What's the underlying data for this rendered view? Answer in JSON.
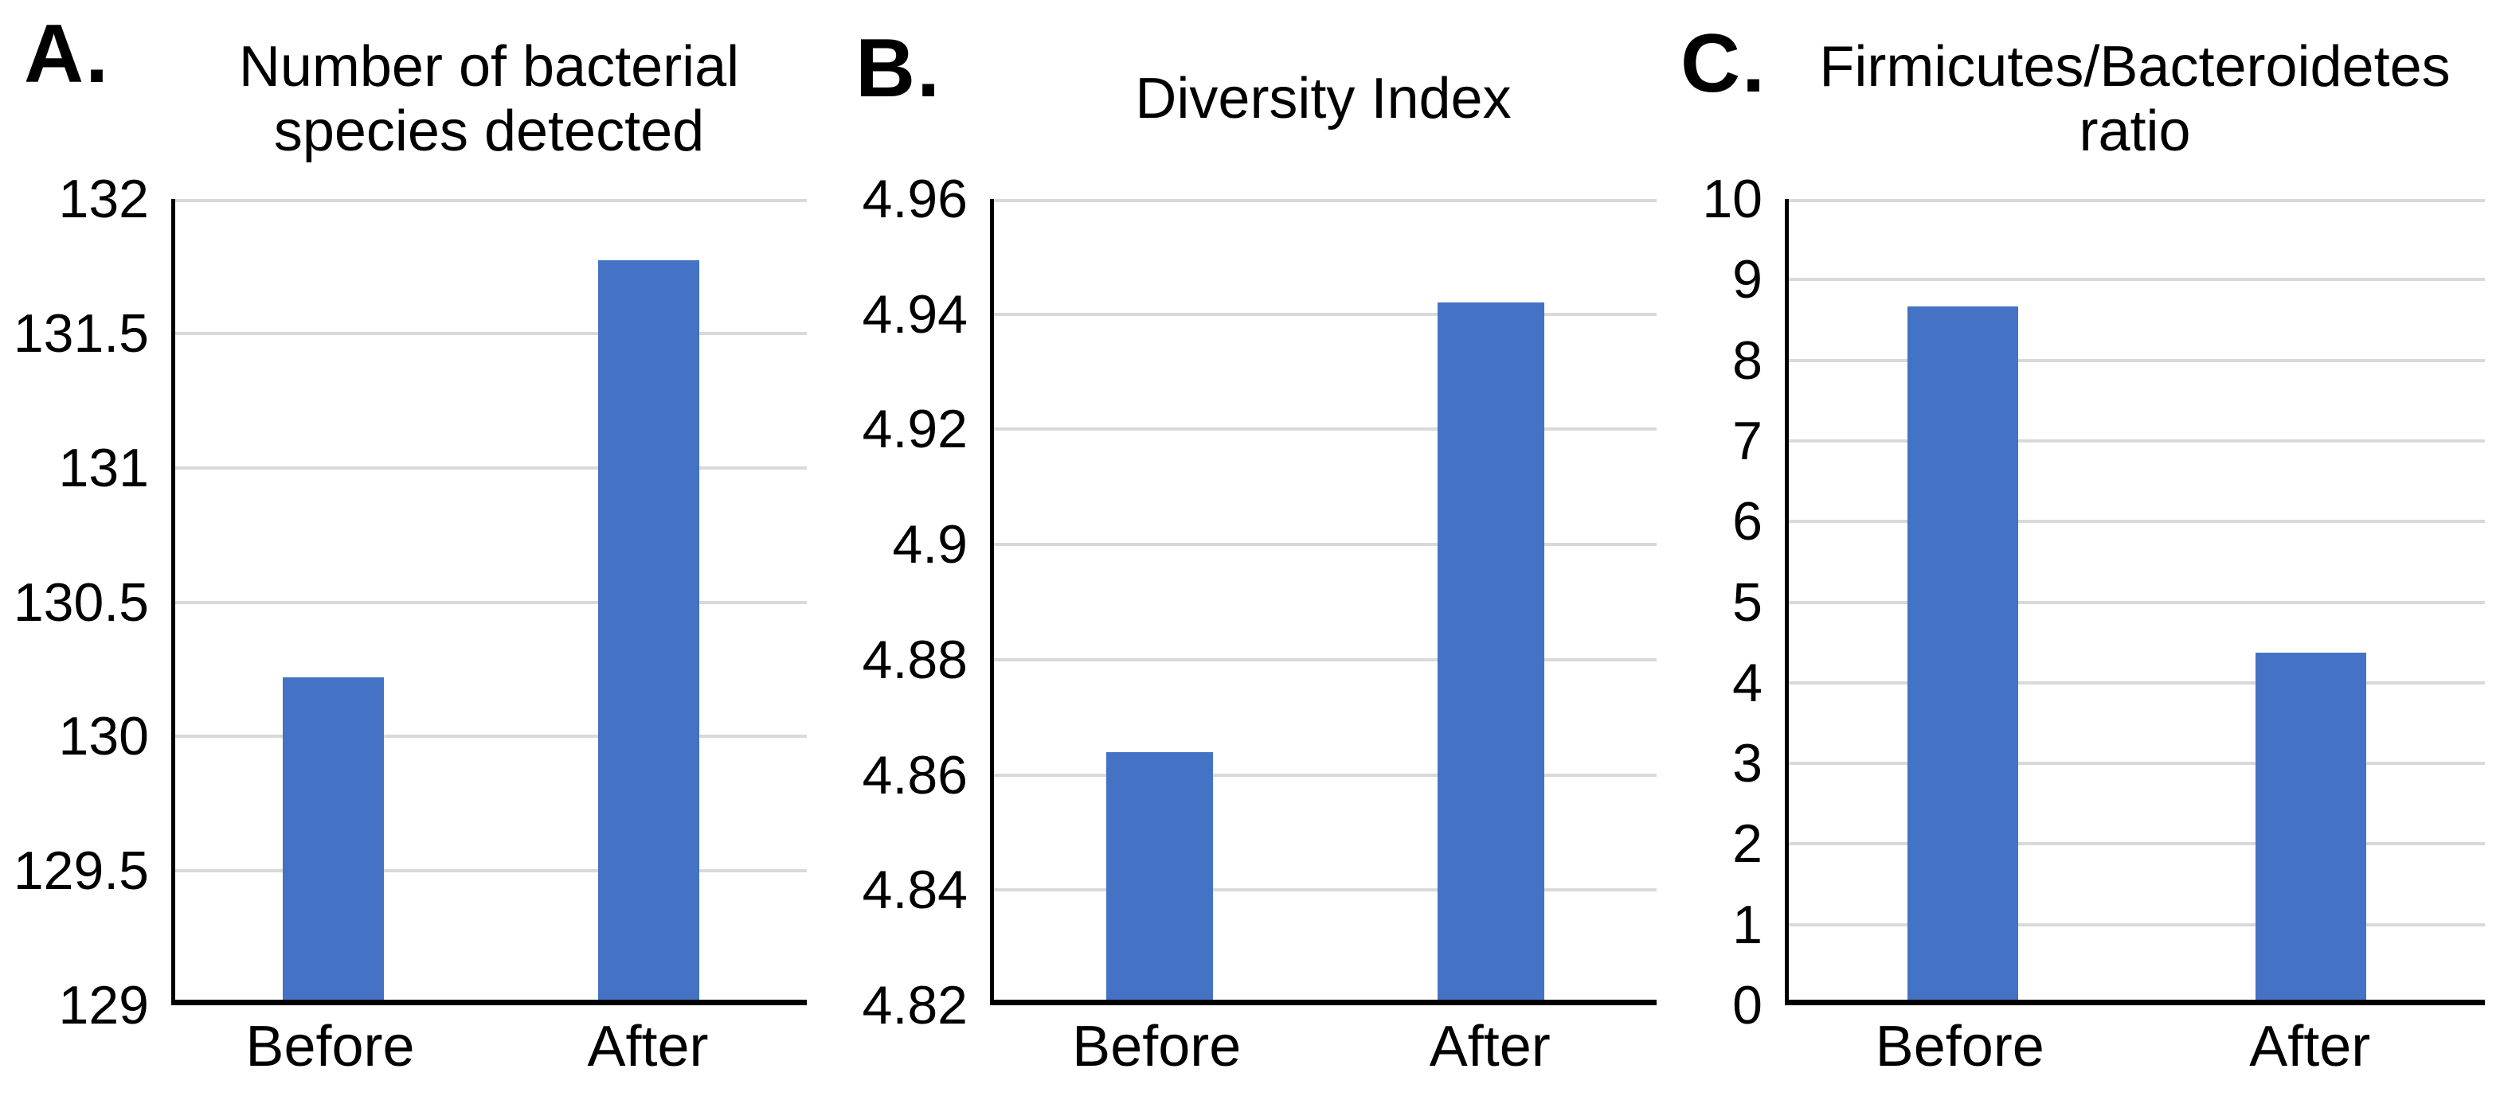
{
  "figure": {
    "background": "#ffffff",
    "bar_color": "#4472C4",
    "gridline_color": "#D9D9D9",
    "axis_color": "#000000",
    "text_color": "#000000"
  },
  "chart_data": [
    {
      "type": "bar",
      "panel_label": "A.",
      "title": "Number of bacterial species detected",
      "title_lines": [
        "Number of bacterial",
        "species detected"
      ],
      "categories": [
        "Before",
        "After"
      ],
      "values": [
        130.2,
        131.75
      ],
      "ylim": [
        129,
        132
      ],
      "yticks": [
        132,
        131.5,
        131,
        130.5,
        130,
        129.5,
        129
      ],
      "ytick_labels": [
        "132",
        "131.5",
        "131",
        "130.5",
        "130",
        "129.5",
        "129"
      ],
      "xlabel": "",
      "ylabel": "",
      "grid": true,
      "legend": false
    },
    {
      "type": "bar",
      "panel_label": "B.",
      "title": "Diversity Index",
      "title_lines": [
        "Diversity Index"
      ],
      "categories": [
        "Before",
        "After"
      ],
      "values": [
        4.863,
        4.941
      ],
      "ylim": [
        4.82,
        4.96
      ],
      "yticks": [
        4.96,
        4.94,
        4.92,
        4.9,
        4.88,
        4.86,
        4.84,
        4.82
      ],
      "ytick_labels": [
        "4.96",
        "4.94",
        "4.92",
        "4.9",
        "4.88",
        "4.86",
        "4.84",
        "4.82"
      ],
      "xlabel": "",
      "ylabel": "",
      "grid": true,
      "legend": false
    },
    {
      "type": "bar",
      "panel_label": "C.",
      "title": "Firmicutes/Bacteroidetes ratio",
      "title_lines": [
        "Firmicutes/Bacteroidetes",
        "ratio"
      ],
      "categories": [
        "Before",
        "After"
      ],
      "values": [
        8.6,
        4.3
      ],
      "ylim": [
        0,
        10
      ],
      "yticks": [
        10,
        9,
        8,
        7,
        6,
        5,
        4,
        3,
        2,
        1,
        0
      ],
      "ytick_labels": [
        "10",
        "9",
        "8",
        "7",
        "6",
        "5",
        "4",
        "3",
        "2",
        "1",
        "0"
      ],
      "xlabel": "",
      "ylabel": "",
      "grid": true,
      "legend": false
    }
  ]
}
